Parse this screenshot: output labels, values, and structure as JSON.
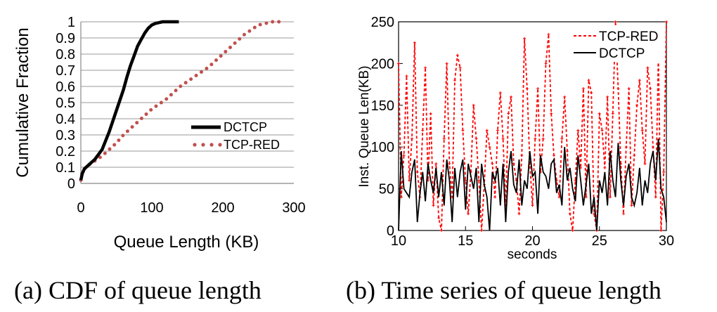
{
  "chart_data": [
    {
      "type": "line",
      "caption": "(a) CDF of queue length",
      "xlabel": "Queue Length (KB)",
      "ylabel": "Cumulative Fraction",
      "xlim": [
        0,
        300
      ],
      "ylim": [
        0,
        1
      ],
      "xticks": [
        "0",
        "100",
        "200",
        "300"
      ],
      "yticks": [
        "0",
        "0.1",
        "0.2",
        "0.3",
        "0.4",
        "0.5",
        "0.6",
        "0.7",
        "0.8",
        "0.9",
        "1"
      ],
      "grid": "horizontal",
      "legend_position": "lower-right",
      "series": [
        {
          "name": "DCTCP",
          "color": "#000000",
          "style": "thick-solid",
          "x": [
            0,
            2,
            5,
            10,
            20,
            30,
            40,
            50,
            60,
            65,
            70,
            75,
            80,
            85,
            90,
            95,
            100,
            105,
            110,
            115,
            120,
            138
          ],
          "y": [
            0.02,
            0.06,
            0.09,
            0.11,
            0.15,
            0.21,
            0.32,
            0.45,
            0.58,
            0.66,
            0.73,
            0.79,
            0.85,
            0.89,
            0.93,
            0.96,
            0.98,
            0.99,
            0.995,
            1.0,
            1.0,
            1.0
          ]
        },
        {
          "name": "TCP-RED",
          "color": "#c0504d",
          "style": "dotted",
          "x": [
            0,
            2,
            5,
            10,
            20,
            30,
            40,
            50,
            60,
            70,
            80,
            90,
            100,
            110,
            120,
            130,
            140,
            150,
            160,
            170,
            180,
            190,
            200,
            210,
            220,
            230,
            240,
            250,
            260,
            270,
            285
          ],
          "y": [
            0.02,
            0.07,
            0.09,
            0.11,
            0.14,
            0.17,
            0.21,
            0.25,
            0.3,
            0.34,
            0.38,
            0.42,
            0.46,
            0.49,
            0.52,
            0.56,
            0.6,
            0.63,
            0.66,
            0.69,
            0.72,
            0.76,
            0.8,
            0.84,
            0.88,
            0.92,
            0.95,
            0.98,
            0.99,
            1.0,
            1.0
          ]
        }
      ]
    },
    {
      "type": "line",
      "caption": "(b) Time series of queue length",
      "xlabel": "seconds",
      "ylabel": "Inst. Queue Len(KB)",
      "xlim": [
        10,
        30
      ],
      "ylim": [
        0,
        250
      ],
      "xticks": [
        "10",
        "15",
        "20",
        "25",
        "30"
      ],
      "yticks": [
        "0",
        "50",
        "100",
        "150",
        "200",
        "250"
      ],
      "grid": "off",
      "legend_position": "top-right",
      "series": [
        {
          "name": "TCP-RED",
          "color": "#ff0000",
          "style": "dashed",
          "x": [
            10.0,
            10.2,
            10.4,
            10.6,
            10.8,
            11.0,
            11.2,
            11.4,
            11.6,
            11.8,
            12.0,
            12.2,
            12.4,
            12.6,
            12.8,
            13.0,
            13.2,
            13.4,
            13.6,
            13.8,
            14.0,
            14.2,
            14.4,
            14.6,
            14.8,
            15.0,
            15.2,
            15.4,
            15.6,
            15.8,
            16.0,
            16.2,
            16.4,
            16.6,
            16.8,
            17.0,
            17.2,
            17.4,
            17.6,
            17.8,
            18.0,
            18.2,
            18.4,
            18.6,
            18.8,
            19.0,
            19.2,
            19.4,
            19.6,
            19.8,
            20.0,
            20.2,
            20.4,
            20.6,
            20.8,
            21.0,
            21.2,
            21.4,
            21.6,
            21.8,
            22.0,
            22.2,
            22.4,
            22.6,
            22.8,
            23.0,
            23.2,
            23.4,
            23.6,
            23.8,
            24.0,
            24.2,
            24.4,
            24.6,
            24.8,
            25.0,
            25.2,
            25.4,
            25.6,
            25.8,
            26.0,
            26.2,
            26.4,
            26.6,
            26.8,
            27.0,
            27.2,
            27.4,
            27.6,
            27.8,
            28.0,
            28.2,
            28.4,
            28.6,
            28.8,
            29.0,
            29.2,
            29.4,
            29.6,
            29.8,
            30.0
          ],
          "y": [
            200,
            40,
            90,
            185,
            60,
            110,
            225,
            70,
            40,
            120,
            195,
            60,
            140,
            30,
            80,
            15,
            0,
            110,
            200,
            80,
            40,
            180,
            210,
            195,
            120,
            60,
            20,
            70,
            150,
            110,
            60,
            0,
            55,
            120,
            100,
            80,
            40,
            120,
            165,
            110,
            30,
            140,
            160,
            80,
            60,
            20,
            90,
            230,
            170,
            80,
            30,
            110,
            170,
            70,
            110,
            200,
            235,
            140,
            90,
            60,
            40,
            110,
            160,
            95,
            20,
            0,
            60,
            120,
            75,
            170,
            40,
            180,
            165,
            20,
            0,
            140,
            120,
            75,
            160,
            40,
            140,
            250,
            170,
            80,
            20,
            100,
            170,
            30,
            90,
            150,
            180,
            120,
            80,
            195,
            170,
            100,
            40,
            210,
            0,
            70,
            250
          ]
        },
        {
          "name": "DCTCP",
          "color": "#000000",
          "style": "solid",
          "x": [
            10.0,
            10.2,
            10.4,
            10.6,
            10.8,
            11.0,
            11.2,
            11.4,
            11.6,
            11.8,
            12.0,
            12.2,
            12.4,
            12.6,
            12.8,
            13.0,
            13.2,
            13.4,
            13.6,
            13.8,
            14.0,
            14.2,
            14.4,
            14.6,
            14.8,
            15.0,
            15.2,
            15.4,
            15.6,
            15.8,
            16.0,
            16.2,
            16.4,
            16.6,
            16.8,
            17.0,
            17.2,
            17.4,
            17.6,
            17.8,
            18.0,
            18.2,
            18.4,
            18.6,
            18.8,
            19.0,
            19.2,
            19.4,
            19.6,
            19.8,
            20.0,
            20.2,
            20.4,
            20.6,
            20.8,
            21.0,
            21.2,
            21.4,
            21.6,
            21.8,
            22.0,
            22.2,
            22.4,
            22.6,
            22.8,
            23.0,
            23.2,
            23.4,
            23.6,
            23.8,
            24.0,
            24.2,
            24.4,
            24.6,
            24.8,
            25.0,
            25.2,
            25.4,
            25.6,
            25.8,
            26.0,
            26.2,
            26.4,
            26.6,
            26.8,
            27.0,
            27.2,
            27.4,
            27.6,
            27.8,
            28.0,
            28.2,
            28.4,
            28.6,
            28.8,
            29.0,
            29.2,
            29.4,
            29.6,
            29.8,
            30.0
          ],
          "y": [
            0,
            95,
            50,
            45,
            40,
            70,
            85,
            10,
            45,
            70,
            35,
            80,
            60,
            45,
            75,
            40,
            70,
            30,
            85,
            60,
            10,
            75,
            40,
            70,
            85,
            25,
            80,
            65,
            50,
            75,
            10,
            80,
            55,
            40,
            0,
            70,
            60,
            75,
            30,
            80,
            10,
            70,
            95,
            55,
            45,
            85,
            30,
            60,
            50,
            95,
            65,
            70,
            20,
            90,
            70,
            65,
            50,
            80,
            85,
            45,
            55,
            30,
            100,
            60,
            75,
            50,
            35,
            90,
            60,
            30,
            55,
            80,
            20,
            40,
            0,
            60,
            45,
            70,
            30,
            95,
            60,
            40,
            105,
            60,
            30,
            65,
            80,
            40,
            30,
            45,
            75,
            30,
            60,
            45,
            80,
            95,
            60,
            110,
            50,
            40,
            10
          ]
        }
      ]
    }
  ]
}
